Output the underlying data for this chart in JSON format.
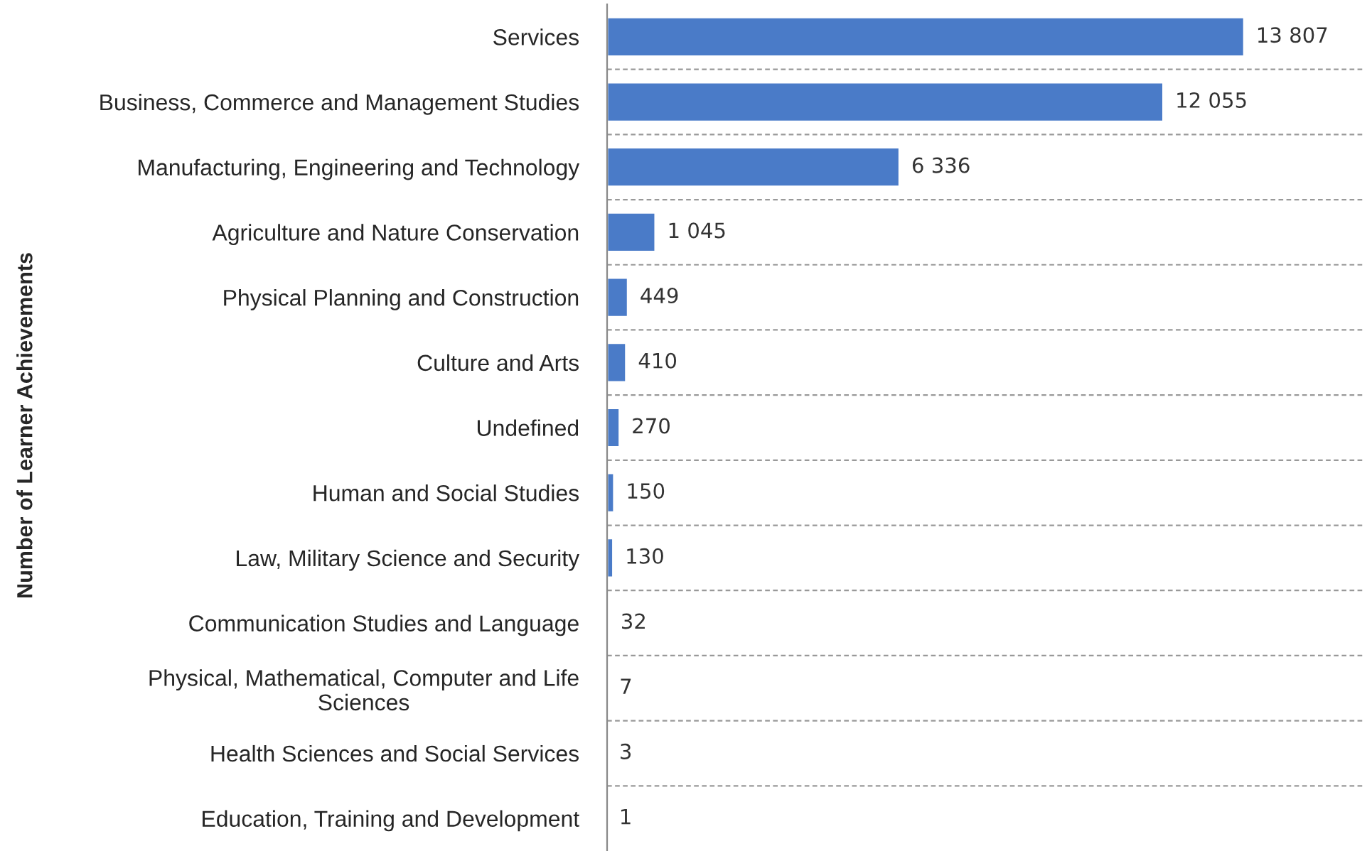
{
  "chart_data": {
    "type": "bar",
    "orientation": "horizontal",
    "ylabel": "Number of Learner Achievements",
    "categories": [
      "Services",
      "Business, Commerce and Management Studies",
      "Manufacturing, Engineering and Technology",
      "Agriculture and Nature Conservation",
      "Physical Planning and Construction",
      "Culture and Arts",
      "Undefined",
      "Human and Social Studies",
      "Law, Military Science and Security",
      "Communication Studies and Language",
      "Physical, Mathematical, Computer and Life\nSciences",
      "Health Sciences and Social Services",
      "Education, Training and Development"
    ],
    "values": [
      13807,
      12055,
      6336,
      1045,
      449,
      410,
      270,
      150,
      130,
      32,
      7,
      3,
      1
    ],
    "value_labels": [
      "13 807",
      "12 055",
      "6 336",
      "1 045",
      "449",
      "410",
      "270",
      "150",
      "130",
      "32",
      "7",
      "3",
      "1"
    ],
    "color": "#4a7bc8",
    "tick_labels": "y",
    "grid": "y",
    "legend": false
  }
}
